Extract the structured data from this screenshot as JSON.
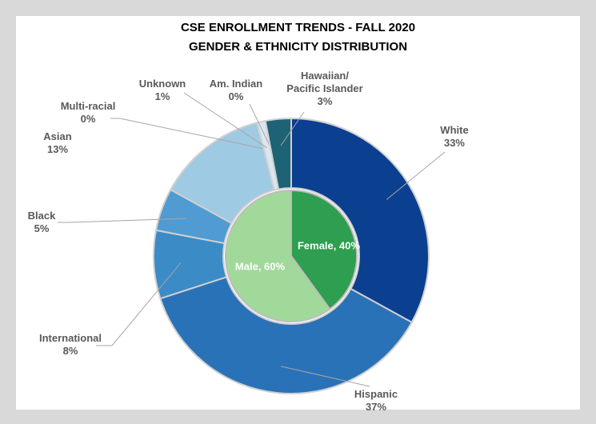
{
  "chart_data": {
    "type": "nested-donut",
    "title": "CSE ENROLLMENT TRENDS - FALL 2020",
    "subtitle": "GENDER & ETHNICITY DISTRIBUTION",
    "series": [
      {
        "categories": [
          "White",
          "Hispanic",
          "International",
          "Black",
          "Asian",
          "Multi-racial",
          "Unknown",
          "Am. Indian",
          "Hawaiian/ Pacific Islander"
        ],
        "values": [
          33,
          37,
          8,
          5,
          13,
          0,
          1,
          0,
          3
        ],
        "value_labels": [
          "33%",
          "37%",
          "8%",
          "5%",
          "13%",
          "0%",
          "1%",
          "0%",
          "3%"
        ],
        "colors": [
          "#0b3f8f",
          "#2a72b7",
          "#3b8bc7",
          "#4f9bd2",
          "#9ecae3",
          "#c3d9ec",
          "#dbe6f0",
          "#e8eef4",
          "#1d6275"
        ]
      },
      {
        "values": [
          40,
          60
        ],
        "value_labels": [
          "Female, 40%",
          "Male, 60%"
        ],
        "colors": [
          "#2e9e50",
          "#a1d99b"
        ]
      }
    ]
  }
}
